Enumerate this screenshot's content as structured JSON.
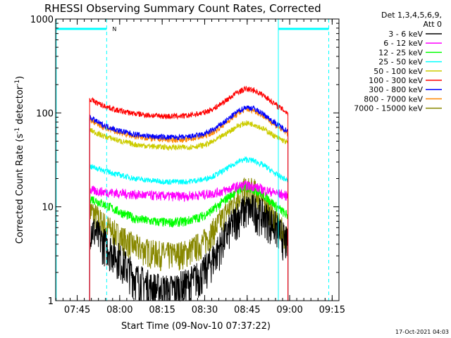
{
  "chart_data": {
    "type": "line",
    "title": "RHESSI Observing Summary Count Rates, Corrected",
    "xlabel": "Start Time (09-Nov-10 07:37:22)",
    "ylabel": "Corrected Count Rate (s⁻¹ detector⁻¹)",
    "y_scale": "log",
    "ylim": [
      1,
      1000
    ],
    "x_unit": "minutes after 07:37:22",
    "xlim": [
      0,
      100
    ],
    "x_ticks": [
      {
        "label": "07:45",
        "minutes": 7.6
      },
      {
        "label": "08:00",
        "minutes": 22.6
      },
      {
        "label": "08:15",
        "minutes": 37.6
      },
      {
        "label": "08:30",
        "minutes": 52.6
      },
      {
        "label": "08:45",
        "minutes": 67.6
      },
      {
        "label": "09:00",
        "minutes": 82.6
      },
      {
        "label": "09:15",
        "minutes": 97.6
      }
    ],
    "y_ticks": [
      {
        "label": "1",
        "value": 1
      },
      {
        "label": "10",
        "value": 10
      },
      {
        "label": "100",
        "value": 100
      },
      {
        "label": "1000",
        "value": 1000
      }
    ],
    "legend_header": [
      "Det 1,3,4,5,6,9,",
      "Att 0"
    ],
    "legend_position": "right",
    "series": [
      {
        "name": "3 - 6 keV",
        "color": "#000000",
        "x": [
          12,
          16,
          22,
          28,
          34,
          40,
          46,
          52,
          56,
          60,
          64,
          67,
          70,
          74,
          78,
          82
        ],
        "values": [
          6.5,
          4.5,
          3.0,
          1.8,
          1.4,
          1.3,
          1.5,
          2.0,
          3.0,
          5.0,
          8.0,
          9.5,
          9.5,
          8.0,
          6.0,
          4.0
        ]
      },
      {
        "name": "6 - 12 keV",
        "color": "#ff00ff",
        "x": [
          12,
          16,
          22,
          28,
          34,
          40,
          46,
          52,
          56,
          60,
          64,
          67,
          70,
          74,
          78,
          82
        ],
        "values": [
          15,
          14.5,
          14,
          13.5,
          13.2,
          13,
          13,
          13.5,
          14,
          15,
          16.5,
          17,
          16.5,
          15,
          14,
          13
        ]
      },
      {
        "name": "12 - 25 keV",
        "color": "#00ff00",
        "x": [
          12,
          16,
          22,
          28,
          34,
          40,
          46,
          52,
          56,
          60,
          64,
          67,
          70,
          74,
          78,
          82
        ],
        "values": [
          12.5,
          11,
          9,
          7.5,
          7,
          6.8,
          7,
          8,
          9.5,
          12,
          15,
          16,
          15.5,
          13,
          10,
          8
        ]
      },
      {
        "name": "25 - 50 keV",
        "color": "#00ffff",
        "x": [
          12,
          16,
          22,
          28,
          34,
          40,
          46,
          52,
          56,
          60,
          64,
          67,
          70,
          74,
          78,
          82
        ],
        "values": [
          27,
          25,
          22,
          20,
          19,
          18.5,
          18.5,
          19.5,
          21.5,
          25,
          30,
          32,
          31,
          27,
          22,
          19
        ]
      },
      {
        "name": "50 - 100 keV",
        "color": "#cccc00",
        "x": [
          12,
          16,
          22,
          28,
          34,
          40,
          46,
          52,
          56,
          60,
          64,
          67,
          70,
          74,
          78,
          82
        ],
        "values": [
          66,
          58,
          51,
          46,
          44,
          43,
          43,
          45,
          50,
          60,
          72,
          78,
          76,
          66,
          55,
          48
        ]
      },
      {
        "name": "100 - 300 keV",
        "color": "#ff0000",
        "x": [
          12,
          16,
          22,
          28,
          34,
          40,
          46,
          52,
          56,
          60,
          64,
          67,
          70,
          74,
          78,
          82
        ],
        "values": [
          140,
          122,
          106,
          98,
          94,
          92,
          93,
          100,
          112,
          135,
          165,
          180,
          175,
          150,
          120,
          100
        ]
      },
      {
        "name": "300 - 800 keV",
        "color": "#0000ff",
        "x": [
          12,
          16,
          22,
          28,
          34,
          40,
          46,
          52,
          56,
          60,
          64,
          67,
          70,
          74,
          78,
          82
        ],
        "values": [
          90,
          76,
          65,
          59,
          56,
          55,
          55,
          59,
          67,
          82,
          102,
          115,
          112,
          94,
          76,
          64
        ]
      },
      {
        "name": "800 - 7000 keV",
        "color": "#ff8800",
        "x": [
          12,
          16,
          22,
          28,
          34,
          40,
          46,
          52,
          56,
          60,
          64,
          67,
          70,
          74,
          78,
          82
        ],
        "values": [
          85,
          72,
          62,
          56,
          53,
          52,
          52,
          56,
          63,
          78,
          97,
          110,
          107,
          90,
          72,
          60
        ]
      },
      {
        "name": "7000 - 15000 keV",
        "color": "#888800",
        "x": [
          12,
          16,
          22,
          28,
          34,
          40,
          46,
          52,
          56,
          60,
          64,
          67,
          70,
          74,
          78,
          82
        ],
        "values": [
          9.5,
          7,
          5,
          3.8,
          3.3,
          3.1,
          3.3,
          4.2,
          5.8,
          8.5,
          13,
          15.5,
          15,
          11,
          7,
          4.5
        ]
      }
    ],
    "annotations": [
      {
        "text": "N",
        "color": "#00ccff"
      }
    ],
    "footer_timestamp": "17-Oct-2021 04:03"
  }
}
